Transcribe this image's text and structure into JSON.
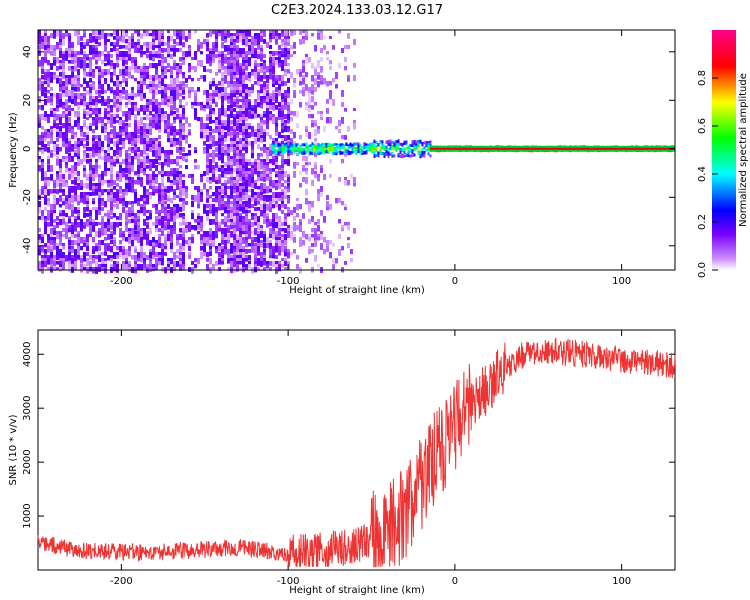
{
  "title": "C2E3.2024.133.03.12.G17",
  "chart_data": [
    {
      "type": "heatmap",
      "title": "C2E3.2024.133.03.12.G17",
      "xlabel": "Height of straight line (km)",
      "ylabel": "Frequency (Hz)",
      "xlim": [
        -250,
        132
      ],
      "ylim": [
        -50,
        49
      ],
      "xticks": [
        -200,
        -100,
        0,
        100
      ],
      "yticks": [
        40,
        20,
        0,
        -20,
        -40
      ],
      "colorbar": {
        "label": "Normalized spectral amplitude",
        "range": [
          0.0,
          1.0
        ],
        "ticks": [
          0.0,
          0.2,
          0.4,
          0.6,
          0.8
        ],
        "colors": [
          "#ffffff",
          "#cc88ff",
          "#7700ff",
          "#0000ff",
          "#00ffff",
          "#00ff00",
          "#ffff00",
          "#ff0000",
          "#ff0088"
        ]
      },
      "regions": [
        {
          "x_range": [
            -250,
            -100
          ],
          "y_range": [
            -50,
            49
          ],
          "amplitude": 0.25,
          "description_free": true
        },
        {
          "x_range": [
            -100,
            -15
          ],
          "center_freq": 0,
          "amplitude": 0.55
        },
        {
          "x_range": [
            -15,
            132
          ],
          "center_freq": 0,
          "amplitude": 0.9
        }
      ]
    },
    {
      "type": "line",
      "xlabel": "Height of straight line (km)",
      "ylabel": "SNR (10 * v/v)",
      "xlim": [
        -250,
        132
      ],
      "ylim": [
        0,
        4450
      ],
      "xticks": [
        -200,
        -100,
        0,
        100
      ],
      "yticks": [
        1000,
        2000,
        3000,
        4000
      ],
      "color": "#ee3333",
      "series": [
        {
          "x": [
            -250,
            -220,
            -180,
            -150,
            -130,
            -110,
            -100,
            -80,
            -60,
            -40,
            -30,
            -20,
            -10,
            0,
            10,
            20,
            30,
            40,
            60,
            80,
            100,
            120,
            132
          ],
          "y": [
            500,
            350,
            330,
            380,
            420,
            350,
            300,
            350,
            450,
            700,
            1100,
            1600,
            2200,
            2600,
            3000,
            3400,
            3750,
            3980,
            4050,
            4000,
            3900,
            3850,
            3780
          ]
        }
      ]
    }
  ]
}
